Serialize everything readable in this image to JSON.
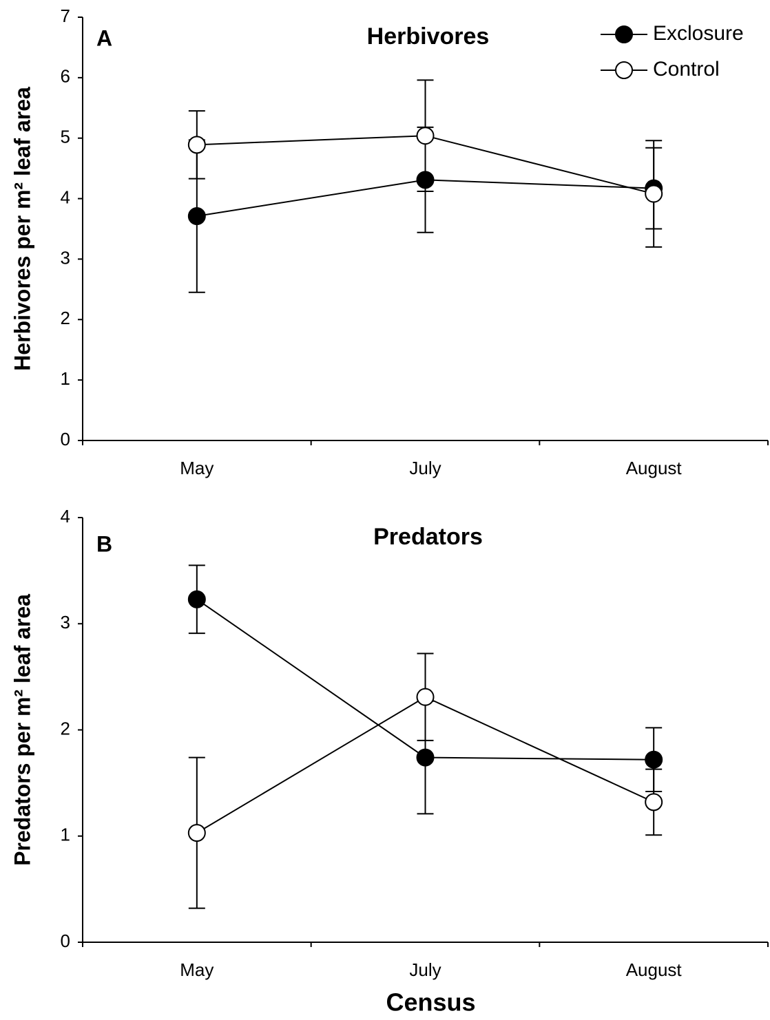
{
  "chart_data": [
    {
      "type": "line",
      "panel_label": "A",
      "title": "Herbivores",
      "y_label": "Herbivores per m² leaf area",
      "categories": [
        "May",
        "July",
        "August"
      ],
      "series": [
        {
          "name": "Exclosure",
          "color": "#000000",
          "values": [
            3.71,
            4.31,
            4.17
          ],
          "errors": [
            1.26,
            0.87,
            0.67
          ]
        },
        {
          "name": "Control",
          "color": "#ffffff",
          "values": [
            4.89,
            5.04,
            4.08
          ],
          "errors": [
            0.56,
            0.92,
            0.88
          ]
        }
      ],
      "ylim": [
        0,
        7
      ],
      "yticks": [
        0,
        1,
        2,
        3,
        4,
        5,
        6,
        7
      ],
      "legend": "upper right"
    },
    {
      "type": "line",
      "panel_label": "B",
      "title": "Predators",
      "y_label": "Predators per m² leaf area",
      "x_label": "Census",
      "categories": [
        "May",
        "July",
        "August"
      ],
      "series": [
        {
          "color": "#000000",
          "values": [
            3.23,
            1.74,
            1.72
          ],
          "errors": [
            0.32,
            0.53,
            0.3
          ]
        },
        {
          "color": "#ffffff",
          "values": [
            1.03,
            2.31,
            1.32
          ],
          "errors": [
            0.71,
            0.41,
            0.31
          ]
        }
      ],
      "ylim": [
        0,
        4
      ],
      "yticks": [
        0,
        1,
        2,
        3,
        4
      ]
    }
  ]
}
